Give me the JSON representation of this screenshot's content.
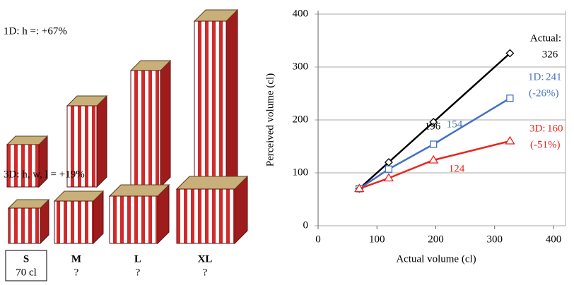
{
  "illustration": {
    "label_1d": "1D: h =: +67%",
    "label_3d": "3D: h, w, l = +19%",
    "sizes": [
      {
        "name": "S",
        "volume": "70 cl"
      },
      {
        "name": "M",
        "volume": "?"
      },
      {
        "name": "L",
        "volume": "?"
      },
      {
        "name": "XL",
        "volume": "?"
      }
    ]
  },
  "chart_data": {
    "type": "line",
    "x_label": "Actual volume (cl)",
    "y_label": "Perceived volume (cl)",
    "x": [
      70,
      120,
      196,
      326
    ],
    "series": [
      {
        "name": "Actual:",
        "color": "#000000",
        "marker": "diamond",
        "values": [
          70,
          120,
          196,
          326
        ]
      },
      {
        "name": "1D:",
        "color": "#4472c4",
        "marker": "square",
        "values": [
          70,
          107,
          154,
          241
        ],
        "change_label": "(-26%)"
      },
      {
        "name": "3D:",
        "color": "#e8251f",
        "marker": "triangle",
        "values": [
          70,
          90,
          124,
          160
        ],
        "change_label": "(-51%)"
      }
    ],
    "xlim": [
      0,
      400
    ],
    "xticks": [
      0,
      100,
      200,
      300,
      400
    ],
    "ylim": [
      0,
      400
    ],
    "yticks": [
      0,
      100,
      200,
      300,
      400
    ],
    "grid": true
  }
}
